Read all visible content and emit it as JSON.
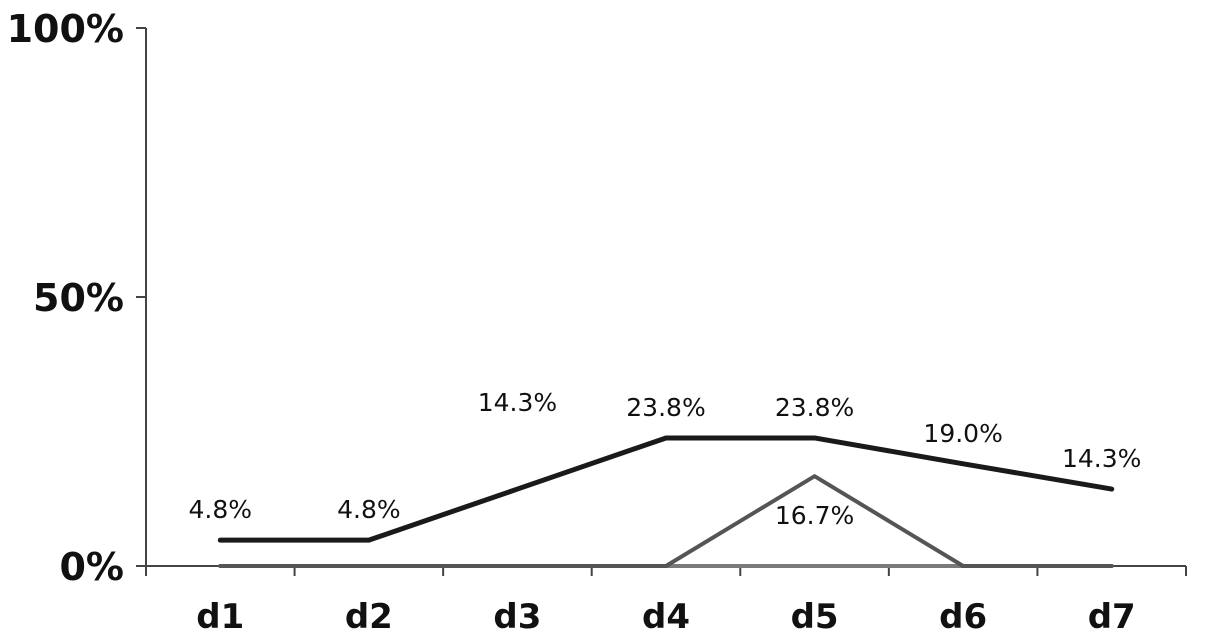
{
  "chart_data": {
    "type": "line",
    "categories": [
      "d1",
      "d2",
      "d3",
      "d4",
      "d5",
      "d6",
      "d7"
    ],
    "y_ticks": [
      "0%",
      "50%",
      "100%"
    ],
    "ylim": [
      0,
      100
    ],
    "grid": false,
    "series": [
      {
        "values": [
          4.8,
          4.8,
          14.3,
          23.8,
          23.8,
          19.0,
          14.3
        ],
        "labels": [
          "4.8%",
          "4.8%",
          "14.3%",
          "23.8%",
          "23.8%",
          "19.0%",
          "14.3%"
        ],
        "color": "#1a1a1a"
      },
      {
        "values": [
          0,
          0,
          0,
          0,
          16.7,
          0,
          0
        ],
        "labels": [
          "",
          "",
          "",
          "",
          "16.7%",
          "",
          ""
        ],
        "color": "#555555"
      },
      {
        "values": [
          0,
          0,
          0,
          0,
          0,
          0,
          0
        ],
        "labels": [
          "",
          "",
          "",
          "",
          "",
          "",
          ""
        ],
        "color": "#7a7a7a"
      }
    ]
  }
}
